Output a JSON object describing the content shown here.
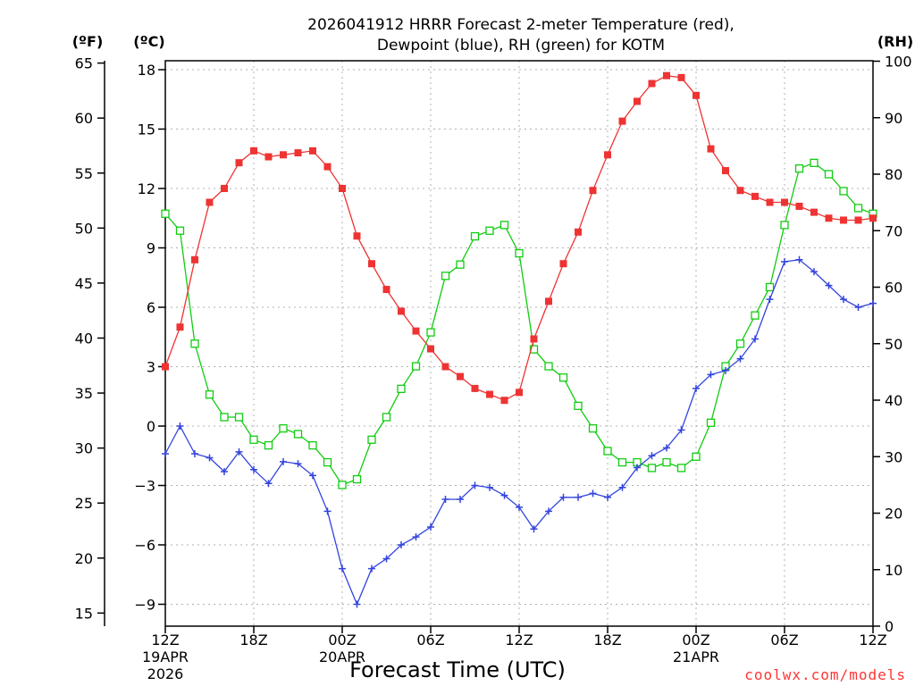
{
  "chart_data": {
    "type": "line",
    "title_line1": "2026041912 HRRR Forecast 2-meter Temperature (red),",
    "title_line2": "Dewpoint (blue), RH (green) for KOTM",
    "xlabel": "Forecast Time (UTC)",
    "unit_left_f": "(ºF)",
    "unit_left_c": "(ºC)",
    "unit_right": "(RH)",
    "credit": "coolwx.com/models",
    "forecast_hours": [
      0,
      1,
      2,
      3,
      4,
      5,
      6,
      7,
      8,
      9,
      10,
      11,
      12,
      13,
      14,
      15,
      16,
      17,
      18,
      19,
      20,
      21,
      22,
      23,
      24,
      25,
      26,
      27,
      28,
      29,
      30,
      31,
      32,
      33,
      34,
      35,
      36,
      37,
      38,
      39,
      40,
      41,
      42,
      43,
      44,
      45,
      46,
      47,
      48
    ],
    "x_range": [
      0,
      48
    ],
    "x_ticks": [
      {
        "hour": 0,
        "label": "12Z",
        "line2": "19APR",
        "line3": "2026"
      },
      {
        "hour": 6,
        "label": "18Z",
        "line2": "",
        "line3": ""
      },
      {
        "hour": 12,
        "label": "00Z",
        "line2": "20APR",
        "line3": ""
      },
      {
        "hour": 18,
        "label": "06Z",
        "line2": "",
        "line3": ""
      },
      {
        "hour": 24,
        "label": "12Z",
        "line2": "",
        "line3": ""
      },
      {
        "hour": 30,
        "label": "18Z",
        "line2": "",
        "line3": ""
      },
      {
        "hour": 36,
        "label": "00Z",
        "line2": "21APR",
        "line3": ""
      },
      {
        "hour": 42,
        "label": "06Z",
        "line2": "",
        "line3": ""
      },
      {
        "hour": 48,
        "label": "12Z",
        "line2": "",
        "line3": ""
      }
    ],
    "celsius_range": [
      -10,
      18.5
    ],
    "celsius_ticks": [
      "18",
      "15",
      "12",
      "9",
      "6",
      "3",
      "0",
      "−3",
      "−6",
      "−9"
    ],
    "fahrenheit_ticks": [
      "65",
      "60",
      "55",
      "50",
      "45",
      "40",
      "35",
      "30",
      "25",
      "20",
      "15"
    ],
    "rh_range": [
      0,
      100
    ],
    "rh_ticks": [
      "100",
      "90",
      "80",
      "70",
      "60",
      "50",
      "40",
      "30",
      "20",
      "10",
      "0"
    ],
    "series": [
      {
        "name": "2-meter Temperature",
        "unit": "C",
        "color": "#ee3333",
        "marker": "filled-square",
        "values": [
          3.0,
          5.0,
          8.4,
          11.3,
          12.0,
          13.3,
          13.9,
          13.6,
          13.7,
          13.8,
          13.9,
          13.1,
          12.0,
          9.6,
          8.2,
          6.9,
          5.8,
          4.8,
          3.9,
          3.0,
          2.5,
          1.9,
          1.6,
          1.3,
          1.7,
          4.4,
          6.3,
          8.2,
          9.8,
          11.9,
          13.7,
          15.4,
          16.4,
          17.3,
          17.7,
          17.6,
          16.7,
          14.0,
          12.9,
          11.9,
          11.6,
          11.3,
          11.3,
          11.1,
          10.8,
          10.5,
          10.4,
          10.4,
          10.5
        ]
      },
      {
        "name": "Dewpoint",
        "unit": "C",
        "color": "#3344dd",
        "marker": "plus",
        "values": [
          -1.4,
          0.0,
          -1.4,
          -1.6,
          -2.3,
          -1.3,
          -2.2,
          -2.9,
          -1.8,
          -1.9,
          -2.5,
          -4.3,
          -7.2,
          -9.0,
          -7.2,
          -6.7,
          -6.0,
          -5.6,
          -5.1,
          -3.7,
          -3.7,
          -3.0,
          -3.1,
          -3.5,
          -4.1,
          -5.2,
          -4.3,
          -3.6,
          -3.6,
          -3.4,
          -3.6,
          -3.1,
          -2.1,
          -1.5,
          -1.1,
          -0.2,
          1.9,
          2.6,
          2.8,
          3.4,
          4.4,
          6.4,
          8.3,
          8.4,
          7.8,
          7.1,
          6.4,
          6.0,
          6.2
        ]
      },
      {
        "name": "RH",
        "unit": "%",
        "color": "#11cc11",
        "marker": "open-square",
        "values": [
          73,
          70,
          50,
          41,
          37,
          37,
          33,
          32,
          35,
          34,
          32,
          29,
          25,
          26,
          33,
          37,
          42,
          46,
          52,
          62,
          64,
          69,
          70,
          71,
          66,
          49,
          46,
          44,
          39,
          35,
          31,
          29,
          29,
          28,
          29,
          28,
          30,
          36,
          46,
          50,
          55,
          60,
          71,
          81,
          82,
          80,
          77,
          74,
          73
        ]
      }
    ]
  }
}
